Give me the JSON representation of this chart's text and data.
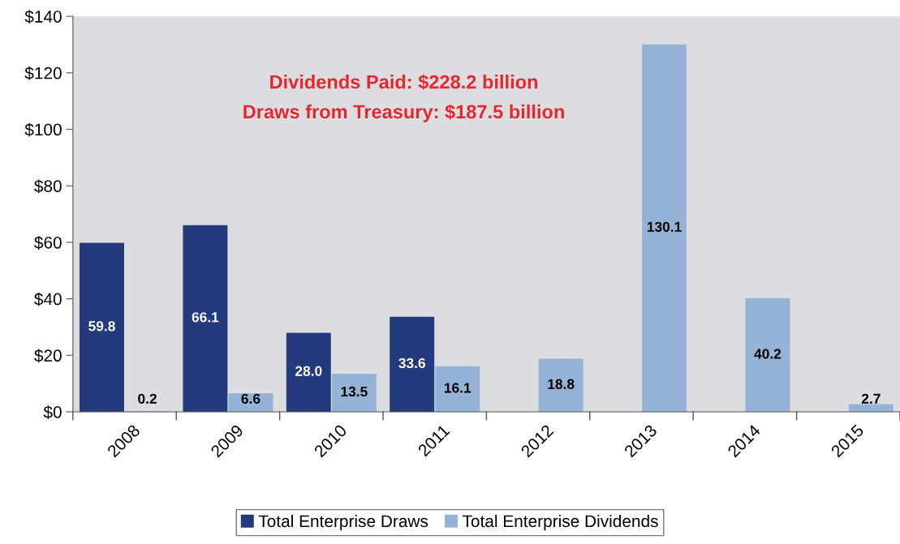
{
  "chart_data": {
    "type": "bar",
    "categories": [
      "2008",
      "2009",
      "2010",
      "2011",
      "2012",
      "2013",
      "2014",
      "2015"
    ],
    "series": [
      {
        "name": "Total Enterprise Draws",
        "color": "#253a7c",
        "values": [
          59.8,
          66.1,
          28.0,
          33.6,
          null,
          null,
          null,
          null
        ],
        "value_labels": [
          "59.8",
          "66.1",
          "28.0",
          "33.6",
          null,
          null,
          null,
          null
        ]
      },
      {
        "name": "Total Enterprise Dividends",
        "color": "#95b3d7",
        "values": [
          0.2,
          6.6,
          13.5,
          16.1,
          18.8,
          130.1,
          40.2,
          2.7
        ],
        "value_labels": [
          "0.2",
          "6.6",
          "13.5",
          "16.1",
          "18.8",
          "130.1",
          "40.2",
          "2.7"
        ]
      }
    ],
    "ylim": [
      0,
      140
    ],
    "yticks": [
      {
        "value": 0,
        "label": "$0"
      },
      {
        "value": 20,
        "label": "$20"
      },
      {
        "value": 40,
        "label": "$40"
      },
      {
        "value": 60,
        "label": "$60"
      },
      {
        "value": 80,
        "label": "$80"
      },
      {
        "value": 100,
        "label": "$100"
      },
      {
        "value": 120,
        "label": "$120"
      },
      {
        "value": 140,
        "label": "$140"
      }
    ],
    "annotations": [
      "Dividends Paid: $228.2 billion",
      "Draws from Treasury: $187.5 billion"
    ],
    "grid": false,
    "legend": "bottom"
  }
}
